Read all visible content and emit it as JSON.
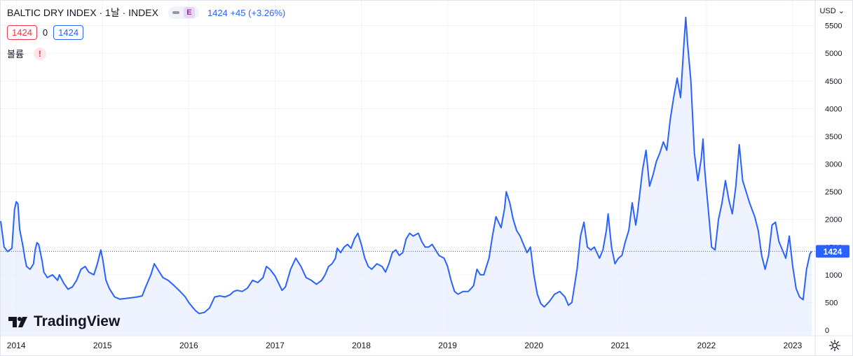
{
  "header": {
    "title": "BALTIC DRY INDEX · 1날 · INDEX",
    "badge_letter": "E",
    "change_text": "1424 +45 (+3.26%)",
    "open_value": "1424",
    "mid_value": "0",
    "close_value": "1424",
    "volume_label": "볼륨",
    "warning_glyph": "!"
  },
  "currency": "USD",
  "currency_caret": "⌄",
  "brand": "TradingView",
  "colors": {
    "line": "#2962ff",
    "fill": "#e9eeff",
    "grid": "#f0f3fa",
    "last_label_bg": "#2962ff",
    "down": "#f23645"
  },
  "chart_data": {
    "type": "area",
    "title": "",
    "xlabel": "",
    "ylabel": "",
    "x_ticks": [
      "2014",
      "2015",
      "2016",
      "2017",
      "2018",
      "2019",
      "2020",
      "2021",
      "2022",
      "2023"
    ],
    "y_ticks": [
      0,
      500,
      1000,
      1500,
      2000,
      2500,
      3000,
      3500,
      4000,
      4500,
      5000,
      5500
    ],
    "ylim": [
      -100,
      5950
    ],
    "xlim": [
      2013.82,
      2023.26
    ],
    "grid": true,
    "last_value": 1424,
    "series": [
      {
        "name": "",
        "points": [
          [
            2013.82,
            1970
          ],
          [
            2013.86,
            1500
          ],
          [
            2013.9,
            1420
          ],
          [
            2013.95,
            1480
          ],
          [
            2013.98,
            2180
          ],
          [
            2014.0,
            2320
          ],
          [
            2014.02,
            2280
          ],
          [
            2014.04,
            1820
          ],
          [
            2014.08,
            1500
          ],
          [
            2014.1,
            1300
          ],
          [
            2014.12,
            1150
          ],
          [
            2014.16,
            1100
          ],
          [
            2014.2,
            1200
          ],
          [
            2014.22,
            1450
          ],
          [
            2014.24,
            1580
          ],
          [
            2014.26,
            1550
          ],
          [
            2014.3,
            1250
          ],
          [
            2014.32,
            1050
          ],
          [
            2014.36,
            950
          ],
          [
            2014.42,
            1000
          ],
          [
            2014.48,
            900
          ],
          [
            2014.5,
            1000
          ],
          [
            2014.55,
            850
          ],
          [
            2014.6,
            740
          ],
          [
            2014.65,
            780
          ],
          [
            2014.7,
            900
          ],
          [
            2014.75,
            1100
          ],
          [
            2014.8,
            1150
          ],
          [
            2014.84,
            1050
          ],
          [
            2014.9,
            1000
          ],
          [
            2014.94,
            1200
          ],
          [
            2014.98,
            1450
          ],
          [
            2015.0,
            1300
          ],
          [
            2015.04,
            900
          ],
          [
            2015.08,
            750
          ],
          [
            2015.14,
            600
          ],
          [
            2015.2,
            560
          ],
          [
            2015.3,
            580
          ],
          [
            2015.4,
            600
          ],
          [
            2015.46,
            620
          ],
          [
            2015.5,
            780
          ],
          [
            2015.56,
            1000
          ],
          [
            2015.6,
            1200
          ],
          [
            2015.64,
            1100
          ],
          [
            2015.7,
            950
          ],
          [
            2015.76,
            900
          ],
          [
            2015.82,
            820
          ],
          [
            2015.9,
            700
          ],
          [
            2015.96,
            600
          ],
          [
            2016.0,
            500
          ],
          [
            2016.04,
            420
          ],
          [
            2016.08,
            350
          ],
          [
            2016.12,
            300
          ],
          [
            2016.18,
            320
          ],
          [
            2016.24,
            400
          ],
          [
            2016.3,
            600
          ],
          [
            2016.36,
            620
          ],
          [
            2016.42,
            600
          ],
          [
            2016.48,
            640
          ],
          [
            2016.52,
            700
          ],
          [
            2016.56,
            720
          ],
          [
            2016.62,
            700
          ],
          [
            2016.68,
            760
          ],
          [
            2016.74,
            900
          ],
          [
            2016.8,
            860
          ],
          [
            2016.86,
            950
          ],
          [
            2016.9,
            1150
          ],
          [
            2016.94,
            1100
          ],
          [
            2017.0,
            980
          ],
          [
            2017.04,
            850
          ],
          [
            2017.08,
            720
          ],
          [
            2017.12,
            780
          ],
          [
            2017.18,
            1100
          ],
          [
            2017.24,
            1300
          ],
          [
            2017.3,
            1150
          ],
          [
            2017.36,
            950
          ],
          [
            2017.42,
            900
          ],
          [
            2017.48,
            830
          ],
          [
            2017.54,
            900
          ],
          [
            2017.58,
            1000
          ],
          [
            2017.62,
            1150
          ],
          [
            2017.66,
            1200
          ],
          [
            2017.7,
            1300
          ],
          [
            2017.72,
            1480
          ],
          [
            2017.76,
            1400
          ],
          [
            2017.8,
            1500
          ],
          [
            2017.84,
            1550
          ],
          [
            2017.88,
            1480
          ],
          [
            2017.92,
            1650
          ],
          [
            2017.96,
            1750
          ],
          [
            2018.0,
            1550
          ],
          [
            2018.04,
            1300
          ],
          [
            2018.08,
            1150
          ],
          [
            2018.12,
            1100
          ],
          [
            2018.18,
            1200
          ],
          [
            2018.24,
            1150
          ],
          [
            2018.28,
            1050
          ],
          [
            2018.32,
            1200
          ],
          [
            2018.36,
            1400
          ],
          [
            2018.4,
            1450
          ],
          [
            2018.44,
            1350
          ],
          [
            2018.48,
            1400
          ],
          [
            2018.52,
            1650
          ],
          [
            2018.56,
            1750
          ],
          [
            2018.6,
            1700
          ],
          [
            2018.66,
            1750
          ],
          [
            2018.7,
            1600
          ],
          [
            2018.74,
            1500
          ],
          [
            2018.78,
            1500
          ],
          [
            2018.82,
            1550
          ],
          [
            2018.86,
            1450
          ],
          [
            2018.9,
            1350
          ],
          [
            2018.96,
            1300
          ],
          [
            2019.0,
            1150
          ],
          [
            2019.04,
            900
          ],
          [
            2019.08,
            700
          ],
          [
            2019.12,
            650
          ],
          [
            2019.18,
            700
          ],
          [
            2019.24,
            700
          ],
          [
            2019.3,
            800
          ],
          [
            2019.34,
            1100
          ],
          [
            2019.38,
            1000
          ],
          [
            2019.42,
            1000
          ],
          [
            2019.48,
            1300
          ],
          [
            2019.52,
            1700
          ],
          [
            2019.56,
            2050
          ],
          [
            2019.62,
            1850
          ],
          [
            2019.66,
            2200
          ],
          [
            2019.68,
            2500
          ],
          [
            2019.72,
            2300
          ],
          [
            2019.76,
            2000
          ],
          [
            2019.8,
            1800
          ],
          [
            2019.84,
            1700
          ],
          [
            2019.88,
            1550
          ],
          [
            2019.92,
            1400
          ],
          [
            2019.96,
            1500
          ],
          [
            2020.0,
            1000
          ],
          [
            2020.04,
            650
          ],
          [
            2020.08,
            480
          ],
          [
            2020.12,
            420
          ],
          [
            2020.18,
            520
          ],
          [
            2020.24,
            650
          ],
          [
            2020.3,
            700
          ],
          [
            2020.36,
            600
          ],
          [
            2020.4,
            450
          ],
          [
            2020.44,
            500
          ],
          [
            2020.5,
            1100
          ],
          [
            2020.54,
            1700
          ],
          [
            2020.58,
            1950
          ],
          [
            2020.62,
            1500
          ],
          [
            2020.66,
            1450
          ],
          [
            2020.7,
            1500
          ],
          [
            2020.76,
            1300
          ],
          [
            2020.8,
            1450
          ],
          [
            2020.84,
            1800
          ],
          [
            2020.86,
            2100
          ],
          [
            2020.9,
            1500
          ],
          [
            2020.94,
            1200
          ],
          [
            2020.98,
            1300
          ],
          [
            2021.02,
            1350
          ],
          [
            2021.06,
            1600
          ],
          [
            2021.1,
            1800
          ],
          [
            2021.14,
            2300
          ],
          [
            2021.18,
            1900
          ],
          [
            2021.2,
            2100
          ],
          [
            2021.26,
            2900
          ],
          [
            2021.3,
            3250
          ],
          [
            2021.34,
            2600
          ],
          [
            2021.38,
            2800
          ],
          [
            2021.42,
            3050
          ],
          [
            2021.46,
            3200
          ],
          [
            2021.5,
            3400
          ],
          [
            2021.54,
            3250
          ],
          [
            2021.58,
            3800
          ],
          [
            2021.62,
            4200
          ],
          [
            2021.66,
            4550
          ],
          [
            2021.7,
            4200
          ],
          [
            2021.74,
            5200
          ],
          [
            2021.76,
            5650
          ],
          [
            2021.78,
            5200
          ],
          [
            2021.82,
            4500
          ],
          [
            2021.86,
            3200
          ],
          [
            2021.9,
            2700
          ],
          [
            2021.94,
            3100
          ],
          [
            2021.96,
            3450
          ],
          [
            2021.98,
            2900
          ],
          [
            2022.02,
            2200
          ],
          [
            2022.06,
            1500
          ],
          [
            2022.1,
            1450
          ],
          [
            2022.14,
            2000
          ],
          [
            2022.18,
            2300
          ],
          [
            2022.22,
            2700
          ],
          [
            2022.26,
            2350
          ],
          [
            2022.3,
            2100
          ],
          [
            2022.34,
            2600
          ],
          [
            2022.38,
            3350
          ],
          [
            2022.42,
            2700
          ],
          [
            2022.46,
            2500
          ],
          [
            2022.5,
            2300
          ],
          [
            2022.56,
            2050
          ],
          [
            2022.6,
            1800
          ],
          [
            2022.64,
            1350
          ],
          [
            2022.68,
            1100
          ],
          [
            2022.72,
            1350
          ],
          [
            2022.76,
            1900
          ],
          [
            2022.8,
            1950
          ],
          [
            2022.84,
            1600
          ],
          [
            2022.88,
            1450
          ],
          [
            2022.92,
            1300
          ],
          [
            2022.96,
            1700
          ],
          [
            2023.0,
            1150
          ],
          [
            2023.04,
            750
          ],
          [
            2023.08,
            600
          ],
          [
            2023.12,
            550
          ],
          [
            2023.16,
            1100
          ],
          [
            2023.2,
            1380
          ],
          [
            2023.22,
            1424
          ]
        ]
      }
    ]
  }
}
